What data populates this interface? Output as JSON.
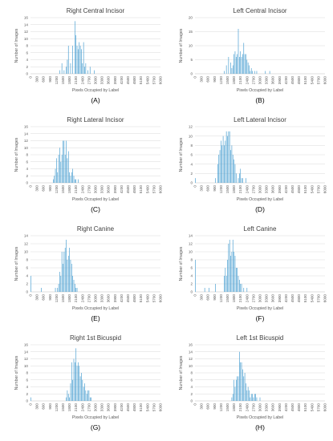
{
  "figure": {
    "bar_color": "#4a9fd1",
    "x_label": "Pixels Occupied by Label",
    "y_label": "Number of Images"
  },
  "chart_data": [
    {
      "type": "bar",
      "panel": "(A)",
      "title": "Right Central Incisor",
      "xlabel": "Pixels Occupied by Label",
      "ylabel": "Number of Images",
      "ylim": [
        0,
        16
      ],
      "yticks": [
        0,
        2,
        4,
        6,
        8,
        10,
        12,
        14,
        16
      ],
      "xlim": [
        0,
        6000
      ],
      "xticks": [
        0,
        300,
        600,
        900,
        1200,
        1500,
        1800,
        2100,
        2400,
        2700,
        3000,
        3300,
        3600,
        3900,
        4200,
        4500,
        4800,
        5100,
        5400,
        5700,
        6000
      ],
      "grid": true,
      "legend": "none",
      "x": [
        1350,
        1450,
        1550,
        1650,
        1700,
        1750,
        1850,
        1950,
        2050,
        2100,
        2150,
        2200,
        2250,
        2300,
        2350,
        2400,
        2450,
        2500,
        2550,
        2650,
        2750,
        2950
      ],
      "values": [
        1,
        3,
        1,
        2,
        4,
        8,
        3,
        8,
        15,
        11,
        8,
        7,
        9,
        8,
        7,
        3,
        9,
        2,
        3,
        1,
        2,
        1
      ]
    },
    {
      "type": "bar",
      "panel": "(B)",
      "title": "Left Central Incisor",
      "xlabel": "Pixels Occupied by Label",
      "ylabel": "Number of Images",
      "ylim": [
        0,
        20
      ],
      "yticks": [
        0,
        5,
        10,
        15,
        20
      ],
      "xlim": [
        0,
        6000
      ],
      "xticks": [
        0,
        300,
        600,
        900,
        1200,
        1500,
        1800,
        2100,
        2400,
        2700,
        3000,
        3300,
        3600,
        3900,
        4200,
        4500,
        4800,
        5100,
        5400,
        5700,
        6000
      ],
      "grid": true,
      "legend": "none",
      "x": [
        1350,
        1450,
        1550,
        1650,
        1700,
        1750,
        1800,
        1850,
        1900,
        1950,
        2000,
        2050,
        2100,
        2150,
        2200,
        2250,
        2300,
        2350,
        2400,
        2450,
        2500,
        2550,
        2600,
        2650,
        2750,
        2850,
        3250,
        3450
      ],
      "values": [
        1,
        3,
        6,
        4,
        2,
        3,
        7,
        8,
        6,
        7,
        16,
        6,
        8,
        6,
        7,
        11,
        7,
        7,
        5,
        4,
        3,
        1,
        2,
        1,
        1,
        1,
        1,
        1
      ]
    },
    {
      "type": "bar",
      "panel": "(C)",
      "title": "Right Lateral Incisor",
      "xlabel": "Pixels Occupied by Label",
      "ylabel": "Number of Images",
      "ylim": [
        0,
        16
      ],
      "yticks": [
        0,
        2,
        4,
        6,
        8,
        10,
        12,
        14,
        16
      ],
      "xlim": [
        0,
        6000
      ],
      "xticks": [
        0,
        300,
        600,
        900,
        1200,
        1500,
        1800,
        2100,
        2400,
        2700,
        3000,
        3300,
        3600,
        3900,
        4200,
        4500,
        4800,
        5100,
        5400,
        5700,
        6000
      ],
      "grid": true,
      "legend": "none",
      "x": [
        1050,
        1100,
        1150,
        1200,
        1250,
        1300,
        1350,
        1400,
        1450,
        1500,
        1550,
        1600,
        1650,
        1700,
        1750,
        1800,
        1850,
        1900,
        1950,
        2000,
        2050,
        2100,
        2200
      ],
      "values": [
        1,
        2,
        4,
        7,
        3,
        8,
        10,
        6,
        8,
        12,
        12,
        8,
        12,
        7,
        9,
        3,
        2,
        3,
        4,
        2,
        1,
        1,
        1
      ]
    },
    {
      "type": "bar",
      "panel": "(D)",
      "title": "Left Lateral Incisor",
      "xlabel": "Pixels Occupied by Label",
      "ylabel": "Number of Images",
      "ylim": [
        0,
        12
      ],
      "yticks": [
        0,
        2,
        4,
        6,
        8,
        10,
        12
      ],
      "xlim": [
        0,
        6000
      ],
      "xticks": [
        0,
        300,
        600,
        900,
        1200,
        1500,
        1800,
        2100,
        2400,
        2700,
        3000,
        3300,
        3600,
        3900,
        4200,
        4500,
        4800,
        5100,
        5400,
        5700,
        6000
      ],
      "grid": true,
      "legend": "none",
      "x": [
        0,
        950,
        1050,
        1100,
        1150,
        1200,
        1250,
        1300,
        1350,
        1400,
        1450,
        1500,
        1550,
        1600,
        1650,
        1700,
        1750,
        1800,
        1850,
        1900,
        2000,
        2050,
        2100,
        2150,
        2200,
        2350
      ],
      "values": [
        1,
        1,
        4,
        6,
        7,
        9,
        8,
        10,
        8,
        9,
        11,
        10,
        11,
        11,
        7,
        8,
        6,
        5,
        4,
        2,
        1,
        2,
        3,
        1,
        1,
        1
      ]
    },
    {
      "type": "bar",
      "panel": "(E)",
      "title": "Right Canine",
      "xlabel": "Pixels Occupied by Label",
      "ylabel": "Number of Images",
      "ylim": [
        0,
        14
      ],
      "yticks": [
        0,
        2,
        4,
        6,
        8,
        10,
        12,
        14
      ],
      "xlim": [
        0,
        6000
      ],
      "xticks": [
        0,
        300,
        600,
        900,
        1200,
        1500,
        1800,
        2100,
        2400,
        2700,
        3000,
        3300,
        3600,
        3900,
        4200,
        4500,
        4800,
        5100,
        5400,
        5700,
        6000
      ],
      "grid": true,
      "legend": "none",
      "x": [
        0,
        500,
        1150,
        1250,
        1300,
        1350,
        1400,
        1450,
        1500,
        1550,
        1600,
        1650,
        1700,
        1750,
        1800,
        1850,
        1900,
        1950,
        2000,
        2050,
        2100,
        2150
      ],
      "values": [
        4,
        1,
        1,
        1,
        2,
        5,
        4,
        10,
        7,
        10,
        11,
        13,
        8,
        9,
        11,
        8,
        7,
        4,
        3,
        2,
        1,
        1
      ]
    },
    {
      "type": "bar",
      "panel": "(F)",
      "title": "Left Canine",
      "xlabel": "Pixels Occupied by Label",
      "ylabel": "Number of Images",
      "ylim": [
        0,
        14
      ],
      "yticks": [
        0,
        2,
        4,
        6,
        8,
        10,
        12,
        14
      ],
      "xlim": [
        0,
        6000
      ],
      "xticks": [
        0,
        300,
        600,
        900,
        1200,
        1500,
        1800,
        2100,
        2400,
        2700,
        3000,
        3300,
        3600,
        3900,
        4200,
        4500,
        4800,
        5100,
        5400,
        5700,
        6000
      ],
      "grid": true,
      "legend": "none",
      "x": [
        0,
        450,
        650,
        950,
        1350,
        1400,
        1450,
        1500,
        1550,
        1600,
        1650,
        1700,
        1750,
        1800,
        1850,
        1900,
        1950,
        2000,
        2050,
        2100,
        2150,
        2250,
        2400
      ],
      "values": [
        8,
        1,
        1,
        2,
        4,
        6,
        4,
        8,
        12,
        13,
        9,
        10,
        13,
        10,
        9,
        6,
        6,
        4,
        3,
        2,
        2,
        1,
        1
      ]
    },
    {
      "type": "bar",
      "panel": "(G)",
      "title": "Right 1st Bicuspid",
      "xlabel": "Pixels Occupied by Label",
      "ylabel": "Number of Images",
      "ylim": [
        0,
        16
      ],
      "yticks": [
        0,
        2,
        4,
        6,
        8,
        10,
        12,
        14,
        16
      ],
      "xlim": [
        0,
        6000
      ],
      "xticks": [
        0,
        300,
        600,
        900,
        1200,
        1500,
        1800,
        2100,
        2400,
        2700,
        3000,
        3300,
        3600,
        3900,
        4200,
        4500,
        4800,
        5100,
        5400,
        5700,
        6000
      ],
      "grid": true,
      "legend": "none",
      "x": [
        0,
        1650,
        1700,
        1750,
        1800,
        1850,
        1900,
        1950,
        2000,
        2050,
        2100,
        2150,
        2200,
        2250,
        2300,
        2350,
        2400,
        2450,
        2500,
        2550,
        2600,
        2650,
        2700,
        2750,
        2800
      ],
      "values": [
        1,
        1,
        3,
        2,
        1,
        5,
        11,
        6,
        12,
        11,
        15,
        10,
        11,
        10,
        7,
        8,
        6,
        4,
        5,
        3,
        2,
        3,
        3,
        1,
        1
      ]
    },
    {
      "type": "bar",
      "panel": "(H)",
      "title": "Left 1st Bicuspid",
      "xlabel": "Pixels Occupied by Label",
      "ylabel": "Number of Images",
      "ylim": [
        0,
        16
      ],
      "yticks": [
        0,
        2,
        4,
        6,
        8,
        10,
        12,
        14,
        16
      ],
      "xlim": [
        0,
        6000
      ],
      "xticks": [
        0,
        300,
        600,
        900,
        1200,
        1500,
        1800,
        2100,
        2400,
        2700,
        3000,
        3300,
        3600,
        3900,
        4200,
        4500,
        4800,
        5100,
        5400,
        5700,
        6000
      ],
      "grid": true,
      "legend": "none",
      "x": [
        1700,
        1750,
        1800,
        1850,
        1900,
        1950,
        2000,
        2050,
        2100,
        2150,
        2200,
        2250,
        2300,
        2350,
        2400,
        2450,
        2500,
        2550,
        2600,
        2650,
        2700,
        2750,
        2800,
        2850,
        3000
      ],
      "values": [
        1,
        2,
        6,
        4,
        6,
        7,
        7,
        14,
        11,
        11,
        9,
        7,
        8,
        5,
        3,
        4,
        3,
        1,
        2,
        2,
        1,
        2,
        2,
        1,
        1
      ]
    }
  ]
}
